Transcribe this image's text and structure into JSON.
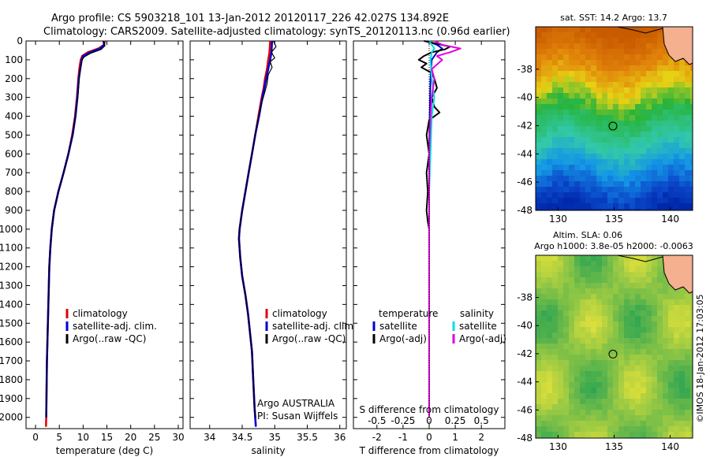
{
  "header": {
    "line1": "Argo profile: CS 5903218_101 13-Jan-2012 20120117_226 42.027S 134.892E",
    "line2": "Climatology: CARS2009. Satellite-adjusted climatology: synTS_20120113.nc (0.96d earlier)"
  },
  "colors": {
    "climatology": "#e00000",
    "satellite": "#0000d0",
    "argo": "#000000",
    "cyan": "#00e0e0",
    "magenta": "#e000e0",
    "land": "#f5b090"
  },
  "chart_data": [
    {
      "id": "temperature",
      "type": "line",
      "xlabel": "temperature (deg C)",
      "xlim": [
        -2,
        31
      ],
      "xticks": [
        0,
        5,
        10,
        15,
        20,
        25,
        30
      ],
      "ylim": [
        0,
        2060
      ],
      "yticks": [
        0,
        100,
        200,
        300,
        400,
        500,
        600,
        700,
        800,
        900,
        1000,
        1100,
        1200,
        1300,
        1400,
        1500,
        1600,
        1700,
        1800,
        1900,
        2000
      ],
      "legend": [
        "climatology",
        "satellite-adj. clim.",
        "Argo(..raw -QC)"
      ],
      "series": [
        {
          "name": "climatology",
          "color": "#e00000",
          "width": 2.5,
          "points": [
            [
              14.6,
              0
            ],
            [
              14.4,
              20
            ],
            [
              13.2,
              40
            ],
            [
              11.0,
              60
            ],
            [
              9.8,
              80
            ],
            [
              9.5,
              100
            ],
            [
              9.2,
              150
            ],
            [
              9.0,
              200
            ],
            [
              8.7,
              300
            ],
            [
              8.3,
              400
            ],
            [
              7.7,
              500
            ],
            [
              6.9,
              600
            ],
            [
              5.9,
              700
            ],
            [
              4.8,
              800
            ],
            [
              3.9,
              900
            ],
            [
              3.4,
              1000
            ],
            [
              3.1,
              1100
            ],
            [
              2.9,
              1200
            ],
            [
              2.8,
              1300
            ],
            [
              2.7,
              1400
            ],
            [
              2.6,
              1500
            ],
            [
              2.5,
              1600
            ],
            [
              2.4,
              1700
            ],
            [
              2.35,
              1800
            ],
            [
              2.3,
              1900
            ],
            [
              2.25,
              2000
            ],
            [
              2.2,
              2050
            ]
          ]
        },
        {
          "name": "satellite-adj. clim.",
          "color": "#0000d0",
          "width": 2.5,
          "points": [
            [
              14.3,
              0
            ],
            [
              14.4,
              20
            ],
            [
              13.6,
              40
            ],
            [
              11.5,
              60
            ],
            [
              10.0,
              80
            ],
            [
              9.7,
              100
            ],
            [
              9.4,
              150
            ],
            [
              9.1,
              200
            ],
            [
              8.8,
              300
            ],
            [
              8.4,
              400
            ],
            [
              7.8,
              500
            ],
            [
              6.9,
              600
            ],
            [
              5.9,
              700
            ],
            [
              4.8,
              800
            ],
            [
              3.9,
              900
            ],
            [
              3.4,
              1000
            ],
            [
              3.1,
              1100
            ],
            [
              2.9,
              1200
            ],
            [
              2.8,
              1300
            ],
            [
              2.7,
              1400
            ],
            [
              2.6,
              1500
            ],
            [
              2.5,
              1600
            ],
            [
              2.4,
              1700
            ],
            [
              2.35,
              1800
            ],
            [
              2.3,
              1900
            ],
            [
              2.25,
              2000
            ]
          ]
        },
        {
          "name": "Argo(..raw -QC)",
          "color": "#000000",
          "width": 1.2,
          "points": [
            [
              14.2,
              0
            ],
            [
              14.6,
              25
            ],
            [
              13.8,
              45
            ],
            [
              11.6,
              65
            ],
            [
              10.2,
              85
            ],
            [
              9.8,
              100
            ],
            [
              9.4,
              150
            ],
            [
              9.2,
              200
            ],
            [
              8.9,
              300
            ],
            [
              8.4,
              400
            ],
            [
              7.8,
              500
            ],
            [
              6.9,
              600
            ],
            [
              5.9,
              700
            ],
            [
              4.8,
              800
            ],
            [
              3.9,
              900
            ],
            [
              3.4,
              1000
            ],
            [
              3.1,
              1100
            ],
            [
              2.9,
              1200
            ],
            [
              2.8,
              1300
            ],
            [
              2.7,
              1400
            ],
            [
              2.6,
              1500
            ],
            [
              2.5,
              1600
            ],
            [
              2.4,
              1700
            ],
            [
              2.35,
              1800
            ],
            [
              2.3,
              1900
            ],
            [
              2.25,
              2000
            ]
          ]
        }
      ]
    },
    {
      "id": "salinity",
      "type": "line",
      "xlabel": "salinity",
      "xlim": [
        33.7,
        36.1
      ],
      "xticks": [
        34,
        34.5,
        35,
        35.5,
        36
      ],
      "ylim": [
        0,
        2060
      ],
      "legend": [
        "climatology",
        "satellite-adj. clim.",
        "Argo(..raw -QC)"
      ],
      "annotation": [
        "Argo AUSTRALIA",
        "PI: Susan Wijffels"
      ],
      "series": [
        {
          "name": "climatology",
          "color": "#e00000",
          "width": 2.5,
          "points": [
            [
              34.93,
              0
            ],
            [
              34.92,
              60
            ],
            [
              34.9,
              100
            ],
            [
              34.88,
              150
            ],
            [
              34.85,
              200
            ],
            [
              34.83,
              250
            ],
            [
              34.8,
              300
            ],
            [
              34.75,
              400
            ],
            [
              34.7,
              500
            ],
            [
              34.65,
              600
            ],
            [
              34.6,
              700
            ],
            [
              34.55,
              800
            ],
            [
              34.5,
              900
            ],
            [
              34.46,
              1000
            ],
            [
              34.45,
              1050
            ],
            [
              34.47,
              1150
            ],
            [
              34.5,
              1250
            ],
            [
              34.55,
              1350
            ],
            [
              34.59,
              1450
            ],
            [
              34.62,
              1550
            ],
            [
              34.65,
              1650
            ],
            [
              34.67,
              1800
            ],
            [
              34.69,
              1950
            ],
            [
              34.71,
              2050
            ]
          ]
        },
        {
          "name": "satellite-adj. clim.",
          "color": "#0000d0",
          "width": 2.5,
          "points": [
            [
              34.96,
              0
            ],
            [
              34.95,
              60
            ],
            [
              34.93,
              100
            ],
            [
              34.9,
              150
            ],
            [
              34.87,
              200
            ],
            [
              34.84,
              250
            ],
            [
              34.81,
              300
            ],
            [
              34.76,
              400
            ],
            [
              34.7,
              500
            ],
            [
              34.65,
              600
            ],
            [
              34.6,
              700
            ],
            [
              34.55,
              800
            ],
            [
              34.5,
              900
            ],
            [
              34.46,
              1000
            ],
            [
              34.45,
              1050
            ],
            [
              34.47,
              1150
            ],
            [
              34.5,
              1250
            ],
            [
              34.55,
              1350
            ],
            [
              34.59,
              1450
            ],
            [
              34.62,
              1550
            ],
            [
              34.65,
              1650
            ],
            [
              34.67,
              1800
            ],
            [
              34.69,
              1950
            ],
            [
              34.71,
              2050
            ]
          ]
        },
        {
          "name": "Argo(..raw -QC)",
          "color": "#000000",
          "width": 1.2,
          "points": [
            [
              34.98,
              0
            ],
            [
              35.02,
              30
            ],
            [
              34.95,
              60
            ],
            [
              35.0,
              90
            ],
            [
              34.93,
              110
            ],
            [
              34.96,
              140
            ],
            [
              34.9,
              180
            ],
            [
              34.88,
              230
            ],
            [
              34.84,
              280
            ],
            [
              34.8,
              330
            ],
            [
              34.74,
              420
            ],
            [
              34.69,
              520
            ],
            [
              34.64,
              620
            ],
            [
              34.59,
              720
            ],
            [
              34.54,
              820
            ],
            [
              34.49,
              920
            ],
            [
              34.46,
              1000
            ],
            [
              34.45,
              1050
            ],
            [
              34.47,
              1150
            ],
            [
              34.5,
              1250
            ],
            [
              34.55,
              1350
            ],
            [
              34.59,
              1450
            ],
            [
              34.62,
              1550
            ],
            [
              34.65,
              1650
            ],
            [
              34.67,
              1800
            ],
            [
              34.69,
              1950
            ],
            [
              34.71,
              2000
            ]
          ]
        }
      ]
    },
    {
      "id": "difference",
      "type": "line",
      "xlabel": "T difference from climatology",
      "xlabel_top": "S difference from climatology",
      "xlim": [
        -2.9,
        2.9
      ],
      "xticks": [
        -2,
        -1,
        0,
        1,
        2
      ],
      "s_ticks": [
        "-0.5",
        "-0.25",
        "0",
        "0.25",
        "0.5"
      ],
      "s_scale": 4,
      "ylim": [
        0,
        2060
      ],
      "legend_left_title": "temperature",
      "legend_right_title": "salinity",
      "legend_left": [
        "satellite",
        "Argo(-adj)"
      ],
      "legend_right": [
        "satellite",
        "Argo(-adj)"
      ],
      "series": [
        {
          "name": "T satellite",
          "color": "#0000d0",
          "width": 2,
          "points": [
            [
              -0.1,
              0
            ],
            [
              0.3,
              20
            ],
            [
              0.5,
              40
            ],
            [
              0.3,
              60
            ],
            [
              0.1,
              100
            ],
            [
              0.05,
              200
            ],
            [
              0.02,
              400
            ],
            [
              0,
              600
            ],
            [
              0,
              1000
            ],
            [
              0,
              2000
            ]
          ]
        },
        {
          "name": "T Argo(-adj)",
          "color": "#000000",
          "width": 2,
          "points": [
            [
              -0.2,
              0
            ],
            [
              0.3,
              15
            ],
            [
              0.8,
              30
            ],
            [
              0.6,
              45
            ],
            [
              0.1,
              60
            ],
            [
              -0.2,
              80
            ],
            [
              -0.4,
              100
            ],
            [
              -0.1,
              120
            ],
            [
              -0.3,
              140
            ],
            [
              0.1,
              170
            ],
            [
              0.2,
              200
            ],
            [
              0.3,
              250
            ],
            [
              0.1,
              300
            ],
            [
              0.2,
              350
            ],
            [
              0.4,
              380
            ],
            [
              0,
              420
            ],
            [
              -0.1,
              500
            ],
            [
              0,
              600
            ],
            [
              -0.1,
              700
            ],
            [
              -0.05,
              800
            ],
            [
              -0.1,
              900
            ],
            [
              -0.05,
              960
            ],
            [
              0,
              1000
            ],
            [
              0,
              2000
            ]
          ]
        },
        {
          "name": "S satellite",
          "color": "#00e0e0",
          "width": 2,
          "points": [
            [
              0.0,
              0
            ],
            [
              0.1,
              20
            ],
            [
              0.2,
              40
            ],
            [
              0.1,
              60
            ],
            [
              0.05,
              100
            ],
            [
              0.1,
              200
            ],
            [
              0.2,
              300
            ],
            [
              0.1,
              400
            ],
            [
              0.05,
              600
            ],
            [
              0,
              800
            ],
            [
              0,
              2000
            ]
          ]
        },
        {
          "name": "S Argo(-adj)",
          "color": "#e000e0",
          "width": 2,
          "points": [
            [
              0.2,
              0
            ],
            [
              0.5,
              20
            ],
            [
              1.2,
              40
            ],
            [
              0.8,
              60
            ],
            [
              0.3,
              80
            ],
            [
              0.5,
              100
            ],
            [
              0.1,
              150
            ],
            [
              0.2,
              200
            ],
            [
              0.1,
              300
            ],
            [
              0.05,
              400
            ],
            [
              0,
              600
            ],
            [
              0,
              2000
            ]
          ]
        }
      ]
    },
    {
      "id": "sst_map",
      "type": "heatmap",
      "title": "sat. SST: 14.2  Argo: 13.7",
      "xlim": [
        128,
        142
      ],
      "ylim": [
        -48,
        -35
      ],
      "xticks": [
        130,
        135,
        140
      ],
      "yticks": [
        -38,
        -40,
        -42,
        -44,
        -46,
        -48
      ],
      "marker": [
        134.892,
        -42.027
      ]
    },
    {
      "id": "sla_map",
      "type": "heatmap",
      "title_line1": "Altim. SLA: 0.06",
      "title_line2": "Argo h1000: 3.8e-05  h2000: -0.0063",
      "xlim": [
        128,
        142
      ],
      "ylim": [
        -48,
        -35
      ],
      "xticks": [
        130,
        135,
        140
      ],
      "yticks": [
        -38,
        -40,
        -42,
        -44,
        -46,
        -48
      ],
      "marker": [
        134.892,
        -42.027
      ]
    }
  ],
  "footer": {
    "timestamp": "©IMOS 18-Jan-2012 17:03:05"
  }
}
